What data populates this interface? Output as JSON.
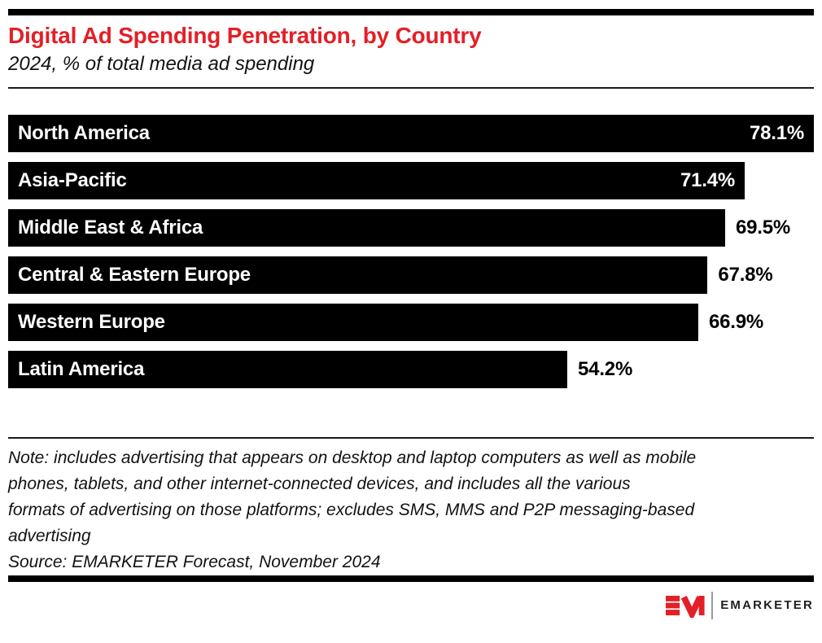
{
  "header": {
    "title": "Digital Ad Spending Penetration, by Country",
    "subtitle": "2024, % of total media ad spending"
  },
  "chart_data": {
    "type": "bar",
    "orientation": "horizontal",
    "title": "Digital Ad Spending Penetration, by Country",
    "subtitle": "2024, % of total media ad spending",
    "categories": [
      "North America",
      "Asia-Pacific",
      "Middle East & Africa",
      "Central & Eastern Europe",
      "Western Europe",
      "Latin America"
    ],
    "values": [
      78.1,
      71.4,
      69.5,
      67.8,
      66.9,
      54.2
    ],
    "value_labels": [
      "78.1%",
      "71.4%",
      "69.5%",
      "67.8%",
      "66.9%",
      "54.2%"
    ],
    "unit": "%",
    "xlim": [
      0,
      78.1
    ],
    "bar_color": "#000000",
    "label_inside": [
      true,
      true,
      false,
      false,
      false,
      false
    ],
    "grid": false,
    "legend": false
  },
  "note": {
    "lines": [
      "Note: includes advertising that appears on desktop and laptop computers as well as mobile",
      "phones, tablets, and other internet-connected devices, and includes all the various",
      "formats of advertising on those platforms; excludes SMS, MMS and P2P messaging-based",
      "advertising"
    ],
    "source": "Source: EMARKETER Forecast, November 2024"
  },
  "footer": {
    "brand": "EMARKETER"
  },
  "colors": {
    "title_red": "#E41F26",
    "logo_red": "#E41F26",
    "bar_black": "#000000"
  }
}
